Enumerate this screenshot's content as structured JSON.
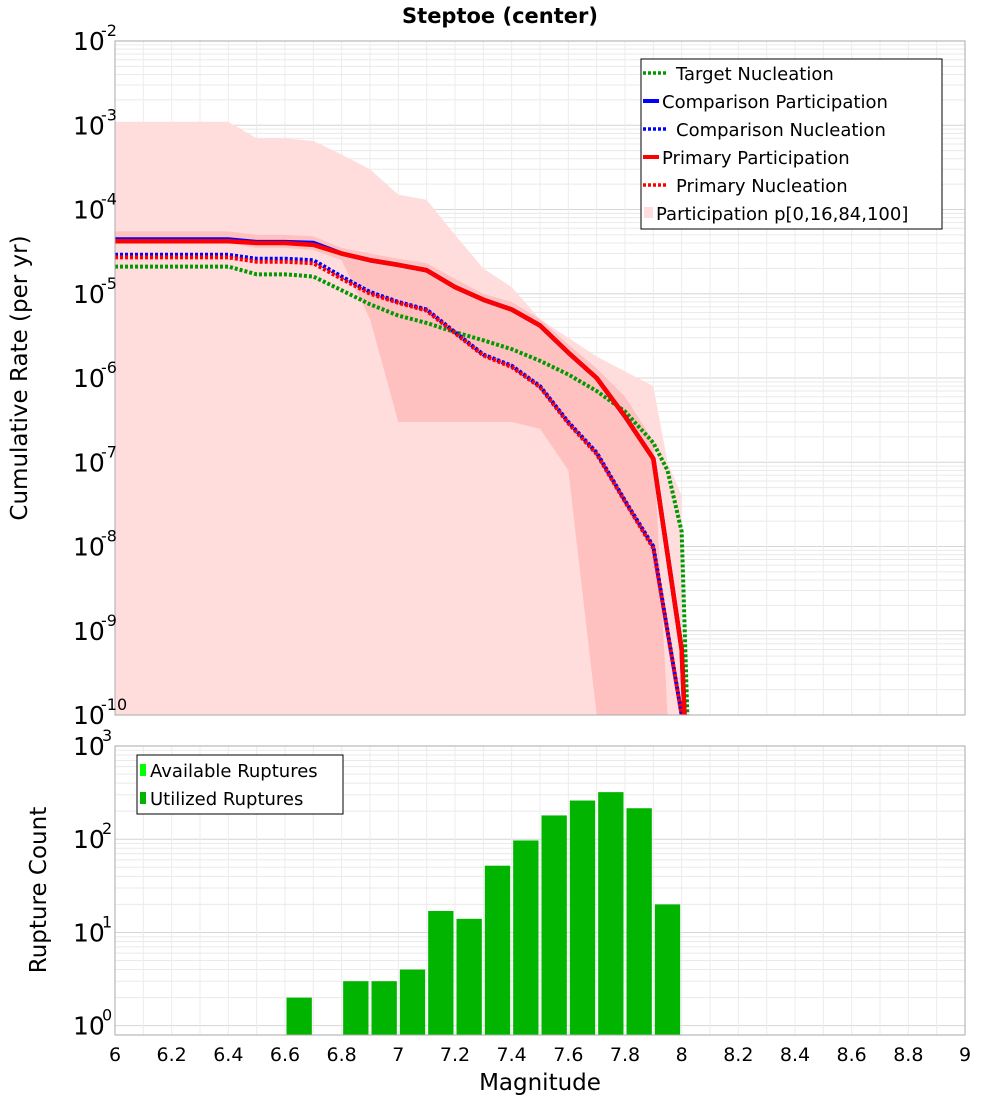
{
  "chart_data": [
    {
      "type": "line",
      "title": "Steptoe (center)",
      "xlabel": "Magnitude",
      "ylabel": "Cumulative Rate (per yr)",
      "xlim": [
        6,
        9
      ],
      "ylim_log10": [
        -10,
        -2
      ],
      "yscale": "log",
      "y_tick_exponents": [
        "-10",
        "-9",
        "-8",
        "-7",
        "-6",
        "-5",
        "-4",
        "-3",
        "-2"
      ],
      "legend_position": "top-right",
      "legend": [
        "Target Nucleation",
        "Comparison Participation",
        "Comparison Nucleation",
        "Primary Participation",
        "Primary Nucleation",
        "Participation p[0,16,84,100]"
      ],
      "colors": {
        "target": "#009900",
        "comparison": "#0000ff",
        "primary": "#ff0000",
        "band_outer": "#ffdddd",
        "band_inner": "#ffc0c0"
      },
      "participation_band_min_max": {
        "x": [
          6.0,
          6.4,
          6.5,
          6.6,
          6.7,
          6.8,
          6.9,
          7.0,
          7.1,
          7.2,
          7.3,
          7.4,
          7.5,
          7.6,
          7.7,
          7.8,
          7.9,
          7.95,
          8.0
        ],
        "low": [
          1e-10,
          1e-10,
          1e-10,
          1e-10,
          1e-10,
          1e-10,
          1e-10,
          1e-10,
          1e-10,
          1e-10,
          1e-10,
          1e-10,
          1e-10,
          1e-10,
          1e-10,
          1e-10,
          1e-10,
          1e-10,
          1e-10
        ],
        "high": [
          0.0011,
          0.0011,
          0.0007,
          0.0007,
          0.00065,
          0.00045,
          0.0003,
          0.00015,
          0.00013,
          5e-05,
          2e-05,
          1.2e-05,
          5e-06,
          3e-06,
          1.8e-06,
          1.2e-06,
          8e-07,
          1e-07,
          4e-08
        ]
      },
      "participation_band_16_84": {
        "x": [
          6.0,
          6.4,
          6.5,
          6.6,
          6.7,
          6.8,
          6.9,
          7.0,
          7.1,
          7.2,
          7.3,
          7.4,
          7.5,
          7.6,
          7.7,
          7.8,
          7.9,
          7.95
        ],
        "low": [
          4e-05,
          4e-05,
          3.5e-05,
          3.5e-05,
          3.3e-05,
          2.5e-05,
          5e-06,
          3e-07,
          3e-07,
          3e-07,
          3e-07,
          3e-07,
          2.5e-07,
          8e-08,
          1e-10,
          1e-10,
          1e-10,
          1e-10
        ],
        "high": [
          5.5e-05,
          5.5e-05,
          5e-05,
          5e-05,
          4.8e-05,
          3.5e-05,
          3e-05,
          2.6e-05,
          2.3e-05,
          1.5e-05,
          1e-05,
          8e-06,
          5e-06,
          2.5e-06,
          1.3e-06,
          6e-07,
          1.8e-07,
          1e-10
        ]
      },
      "series": [
        {
          "name": "Target Nucleation",
          "style": "dotted",
          "color": "#009900",
          "x": [
            6.0,
            6.4,
            6.5,
            6.6,
            6.7,
            6.8,
            6.9,
            7.0,
            7.1,
            7.2,
            7.3,
            7.4,
            7.5,
            7.6,
            7.7,
            7.8,
            7.9,
            7.95,
            8.0,
            8.02
          ],
          "y": [
            2.1e-05,
            2.1e-05,
            1.7e-05,
            1.7e-05,
            1.6e-05,
            1.1e-05,
            7.5e-06,
            5.5e-06,
            4.5e-06,
            3.5e-06,
            2.8e-06,
            2.2e-06,
            1.6e-06,
            1.1e-06,
            7e-07,
            4e-07,
            1.7e-07,
            8e-08,
            1.5e-08,
            1e-10
          ]
        },
        {
          "name": "Comparison Participation",
          "style": "solid",
          "color": "#0000ff",
          "x": [
            6.0,
            6.4,
            6.5,
            6.6,
            6.7,
            6.8,
            6.9,
            7.0,
            7.1,
            7.2,
            7.3,
            7.4,
            7.5,
            7.6,
            7.7,
            7.8,
            7.9,
            8.0,
            8.01
          ],
          "y": [
            4.4e-05,
            4.4e-05,
            4.1e-05,
            4.1e-05,
            4e-05,
            3e-05,
            2.5e-05,
            2.2e-05,
            1.9e-05,
            1.2e-05,
            8.5e-06,
            6.5e-06,
            4.2e-06,
            2e-06,
            1e-06,
            3.5e-07,
            1.1e-07,
            6e-10,
            1e-10
          ]
        },
        {
          "name": "Comparison Nucleation",
          "style": "dotted",
          "color": "#0000ff",
          "x": [
            6.0,
            6.4,
            6.5,
            6.6,
            6.7,
            6.8,
            6.9,
            7.0,
            7.1,
            7.2,
            7.3,
            7.4,
            7.5,
            7.6,
            7.7,
            7.8,
            7.9,
            8.0
          ],
          "y": [
            2.9e-05,
            2.9e-05,
            2.6e-05,
            2.6e-05,
            2.5e-05,
            1.6e-05,
            1.05e-05,
            8e-06,
            6.5e-06,
            3.5e-06,
            1.9e-06,
            1.4e-06,
            8e-07,
            3e-07,
            1.3e-07,
            3.5e-08,
            1e-08,
            1e-10
          ]
        },
        {
          "name": "Primary Participation",
          "style": "solid",
          "color": "#ff0000",
          "x": [
            6.0,
            6.4,
            6.5,
            6.6,
            6.7,
            6.8,
            6.9,
            7.0,
            7.1,
            7.2,
            7.3,
            7.4,
            7.5,
            7.6,
            7.7,
            7.8,
            7.9,
            8.0,
            8.01
          ],
          "y": [
            4.2e-05,
            4.2e-05,
            4e-05,
            4e-05,
            3.8e-05,
            3e-05,
            2.5e-05,
            2.2e-05,
            1.9e-05,
            1.2e-05,
            8.5e-06,
            6.5e-06,
            4.2e-06,
            2e-06,
            1e-06,
            3.5e-07,
            1.1e-07,
            6e-10,
            1e-10
          ]
        },
        {
          "name": "Primary Nucleation",
          "style": "dotted",
          "color": "#ff0000",
          "x": [
            6.0,
            6.4,
            6.5,
            6.6,
            6.7,
            6.8,
            6.9,
            7.0,
            7.1,
            7.2,
            7.3,
            7.4,
            7.5,
            7.6,
            7.7,
            7.8,
            7.9,
            8.0
          ],
          "y": [
            2.7e-05,
            2.7e-05,
            2.4e-05,
            2.4e-05,
            2.3e-05,
            1.5e-05,
            1e-05,
            7.8e-06,
            6.3e-06,
            3.4e-06,
            1.85e-06,
            1.35e-06,
            7.8e-07,
            2.9e-07,
            1.25e-07,
            3.4e-08,
            9.5e-09,
            1e-10
          ]
        }
      ]
    },
    {
      "type": "bar",
      "xlabel": "Magnitude",
      "ylabel": "Rupture Count",
      "xlim": [
        6,
        9
      ],
      "ylim_log10": [
        -0.1,
        3
      ],
      "yscale": "log",
      "x_ticks": [
        "6",
        "6.2",
        "6.4",
        "6.6",
        "6.8",
        "7",
        "7.2",
        "7.4",
        "7.6",
        "7.8",
        "8",
        "8.2",
        "8.4",
        "8.6",
        "8.8",
        "9"
      ],
      "y_tick_exponents": [
        "0",
        "1",
        "2",
        "3"
      ],
      "legend_position": "top-left",
      "legend": [
        "Available Ruptures",
        "Utilized Ruptures"
      ],
      "colors": {
        "available": "#00ff00",
        "utilized": "#00b400"
      },
      "bin_width": 0.1,
      "bins": [
        6.65,
        6.85,
        6.95,
        7.05,
        7.15,
        7.25,
        7.35,
        7.45,
        7.55,
        7.65,
        7.75,
        7.85,
        7.95
      ],
      "series": [
        {
          "name": "Utilized Ruptures",
          "values": [
            2,
            3,
            3,
            4,
            17,
            14,
            52,
            97,
            180,
            260,
            320,
            215,
            20
          ]
        }
      ]
    }
  ]
}
